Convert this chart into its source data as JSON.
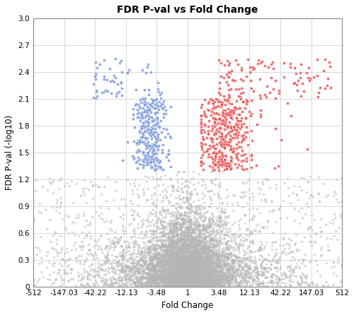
{
  "title": "FDR P-val vs Fold Change",
  "xlabel": "Fold Change",
  "ylabel": "FDR P-val (-log10)",
  "xlim_log": [
    -9,
    9
  ],
  "ylim": [
    0,
    3
  ],
  "xtick_positions": [
    -9,
    -7.2,
    -5.4,
    -3.6,
    -1.8,
    0,
    1.8,
    3.6,
    5.4,
    7.2,
    9
  ],
  "xtick_labels": [
    "-512",
    "-147.03",
    "-42.22",
    "-12.13",
    "-3.48",
    "1",
    "3.48",
    "12.13",
    "42.22",
    "147.03",
    "512"
  ],
  "yticks": [
    0,
    0.3,
    0.6,
    0.9,
    1.2,
    1.5,
    1.8,
    2.1,
    2.4,
    2.7,
    3.0
  ],
  "fdr_threshold": 1.301,
  "up_color": "#e84040",
  "down_color": "#6b8fd4",
  "ns_color": "#b5b5b5",
  "dot_size_colored": 9,
  "dot_size_grey": 6,
  "dot_alpha_colored": 0.75,
  "dot_alpha_grey": 0.5,
  "background_color": "#ffffff",
  "grid_color": "#cccccc",
  "seed": 42,
  "n_ns": 7500,
  "n_up": 550,
  "n_down": 400,
  "title_fontsize": 10,
  "axis_fontsize": 8.5,
  "tick_fontsize": 7.5
}
